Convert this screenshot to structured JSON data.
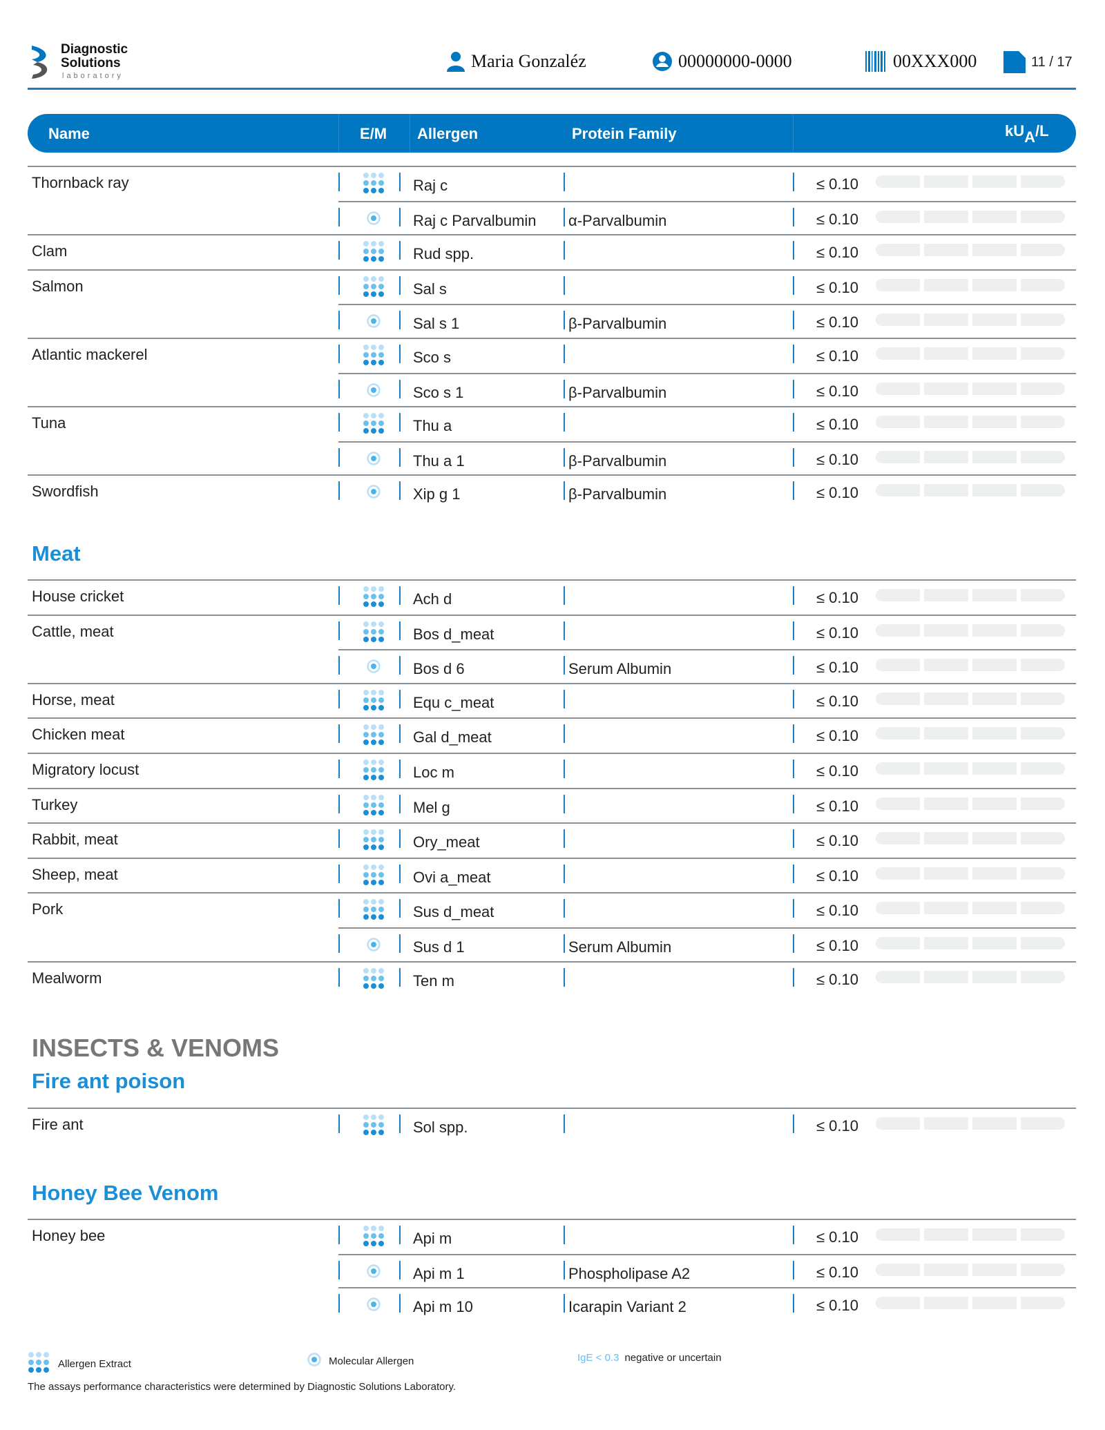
{
  "header": {
    "logo": {
      "line1": "Diagnostic",
      "line2": "Solutions",
      "line3": "laboratory"
    },
    "patient_name": "Maria Gonzaléz",
    "patient_id": "00000000-0000",
    "sample_code": "00XXX000",
    "page": "11 / 17"
  },
  "table_header": {
    "name": "Name",
    "em": "E/M",
    "allergen": "Allergen",
    "family": "Protein Family",
    "unit": "kU",
    "unit_sub": "A",
    "unit_suffix": "/L"
  },
  "colors": {
    "brand": "#0077c0",
    "section": "#1a8fd8",
    "bar": "#eef0f0"
  },
  "sections": [
    {
      "title": "",
      "groups": [
        {
          "name": "Thornback ray",
          "items": [
            {
              "type": "extract",
              "allergen": "Raj c",
              "family": "",
              "value": "≤ 0.10"
            },
            {
              "type": "molecular",
              "allergen": "Raj c Parvalbumin",
              "family": "α-Parvalbumin",
              "value": "≤ 0.10"
            }
          ]
        },
        {
          "name": "Clam",
          "items": [
            {
              "type": "extract",
              "allergen": "Rud spp.",
              "family": "",
              "value": "≤ 0.10"
            }
          ]
        },
        {
          "name": "Salmon",
          "items": [
            {
              "type": "extract",
              "allergen": "Sal s",
              "family": "",
              "value": "≤ 0.10"
            },
            {
              "type": "molecular",
              "allergen": "Sal s 1",
              "family": "β-Parvalbumin",
              "value": "≤ 0.10"
            }
          ]
        },
        {
          "name": "Atlantic mackerel",
          "items": [
            {
              "type": "extract",
              "allergen": "Sco s",
              "family": "",
              "value": "≤ 0.10"
            },
            {
              "type": "molecular",
              "allergen": "Sco s 1",
              "family": "β-Parvalbumin",
              "value": "≤ 0.10"
            }
          ]
        },
        {
          "name": "Tuna",
          "items": [
            {
              "type": "extract",
              "allergen": "Thu a",
              "family": "",
              "value": "≤ 0.10"
            },
            {
              "type": "molecular",
              "allergen": "Thu a 1",
              "family": "β-Parvalbumin",
              "value": "≤ 0.10"
            }
          ]
        },
        {
          "name": "Swordfish",
          "items": [
            {
              "type": "molecular",
              "allergen": "Xip g 1",
              "family": "β-Parvalbumin",
              "value": "≤ 0.10"
            }
          ]
        }
      ]
    },
    {
      "title": "Meat",
      "groups": [
        {
          "name": "House cricket",
          "items": [
            {
              "type": "extract",
              "allergen": "Ach d",
              "family": "",
              "value": "≤ 0.10"
            }
          ]
        },
        {
          "name": "Cattle, meat",
          "items": [
            {
              "type": "extract",
              "allergen": "Bos d_meat",
              "family": "",
              "value": "≤ 0.10"
            },
            {
              "type": "molecular",
              "allergen": "Bos d 6",
              "family": "Serum Albumin",
              "value": "≤ 0.10"
            }
          ]
        },
        {
          "name": "Horse, meat",
          "items": [
            {
              "type": "extract",
              "allergen": "Equ c_meat",
              "family": "",
              "value": "≤ 0.10"
            }
          ]
        },
        {
          "name": "Chicken meat",
          "items": [
            {
              "type": "extract",
              "allergen": "Gal d_meat",
              "family": "",
              "value": "≤ 0.10"
            }
          ]
        },
        {
          "name": "Migratory locust",
          "items": [
            {
              "type": "extract",
              "allergen": "Loc m",
              "family": "",
              "value": "≤ 0.10"
            }
          ]
        },
        {
          "name": "Turkey",
          "items": [
            {
              "type": "extract",
              "allergen": "Mel g",
              "family": "",
              "value": "≤ 0.10"
            }
          ]
        },
        {
          "name": "Rabbit, meat",
          "items": [
            {
              "type": "extract",
              "allergen": "Ory_meat",
              "family": "",
              "value": "≤ 0.10"
            }
          ]
        },
        {
          "name": "Sheep, meat",
          "items": [
            {
              "type": "extract",
              "allergen": "Ovi a_meat",
              "family": "",
              "value": "≤ 0.10"
            }
          ]
        },
        {
          "name": "Pork",
          "items": [
            {
              "type": "extract",
              "allergen": "Sus d_meat",
              "family": "",
              "value": "≤ 0.10"
            },
            {
              "type": "molecular",
              "allergen": "Sus d 1",
              "family": "Serum Albumin",
              "value": "≤ 0.10"
            }
          ]
        },
        {
          "name": "Mealworm",
          "items": [
            {
              "type": "extract",
              "allergen": "Ten m",
              "family": "",
              "value": "≤ 0.10"
            }
          ]
        }
      ]
    },
    {
      "category": "INSECTS & VENOMS",
      "title": "Fire ant poison",
      "groups": [
        {
          "name": "Fire ant",
          "items": [
            {
              "type": "extract",
              "allergen": "Sol spp.",
              "family": "",
              "value": "≤ 0.10"
            }
          ]
        }
      ]
    },
    {
      "title": "Honey Bee Venom",
      "groups": [
        {
          "name": "Honey bee",
          "items": [
            {
              "type": "extract",
              "allergen": "Api m",
              "family": "",
              "value": "≤ 0.10"
            },
            {
              "type": "molecular",
              "allergen": "Api m 1",
              "family": "Phospholipase A2",
              "value": "≤ 0.10"
            },
            {
              "type": "molecular",
              "allergen": "Api m 10",
              "family": "Icarapin Variant 2",
              "value": "≤ 0.10"
            }
          ]
        }
      ]
    }
  ],
  "legend": {
    "extract": "Allergen Extract",
    "molecular": "Molecular Allergen",
    "threshold": "IgE < 0.3",
    "threshold_text": "negative or uncertain"
  },
  "footer": "The assays performance characteristics were determined by Diagnostic Solutions Laboratory."
}
